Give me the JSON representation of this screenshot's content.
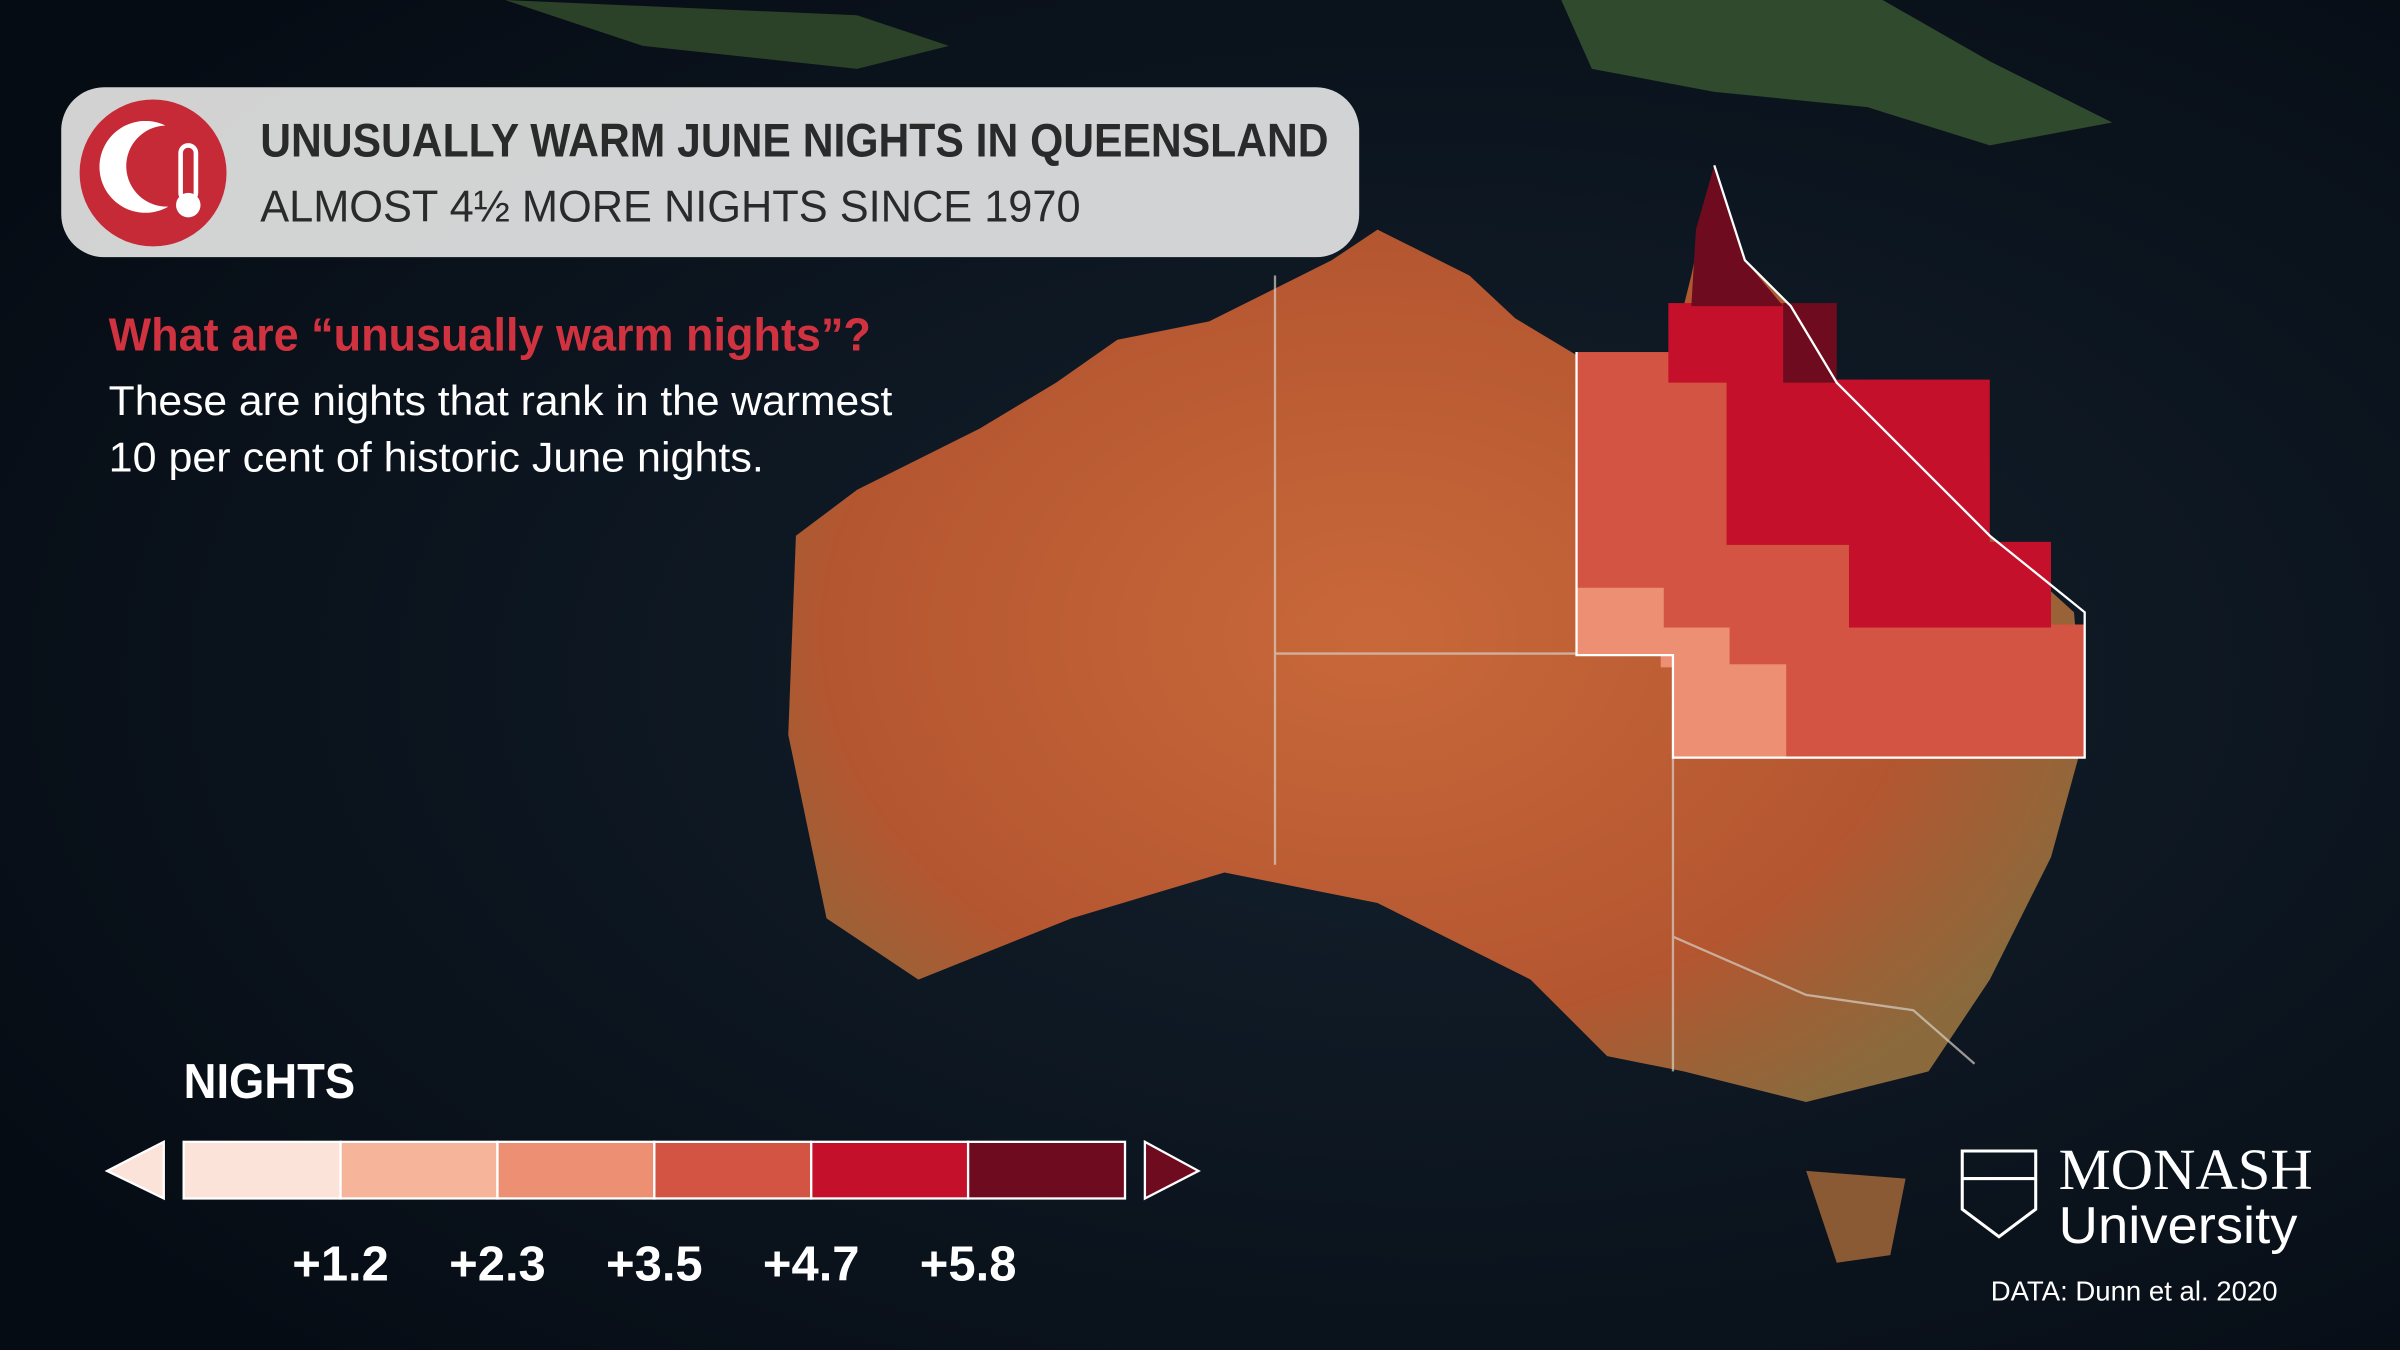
{
  "header": {
    "title": "UNUSUALLY WARM JUNE NIGHTS IN QUEENSLAND",
    "subtitle": "ALMOST 4½ MORE NIGHTS SINCE 1970"
  },
  "explainer": {
    "question": "What are “unusually warm nights”?",
    "lines": [
      "These are nights that rank in the warmest",
      "10 per cent of historic June nights."
    ]
  },
  "legend": {
    "title": "NIGHTS",
    "colors": [
      "#fbe3da",
      "#f6b59a",
      "#ec8f72",
      "#d35442",
      "#c4102a",
      "#6e0b1e"
    ],
    "ticks": [
      "+1.2",
      "+2.3",
      "+3.5",
      "+4.7",
      "+5.8"
    ]
  },
  "logo": {
    "name": "MONASH",
    "subname": "University"
  },
  "credit": "DATA: Dunn et al. 2020"
}
